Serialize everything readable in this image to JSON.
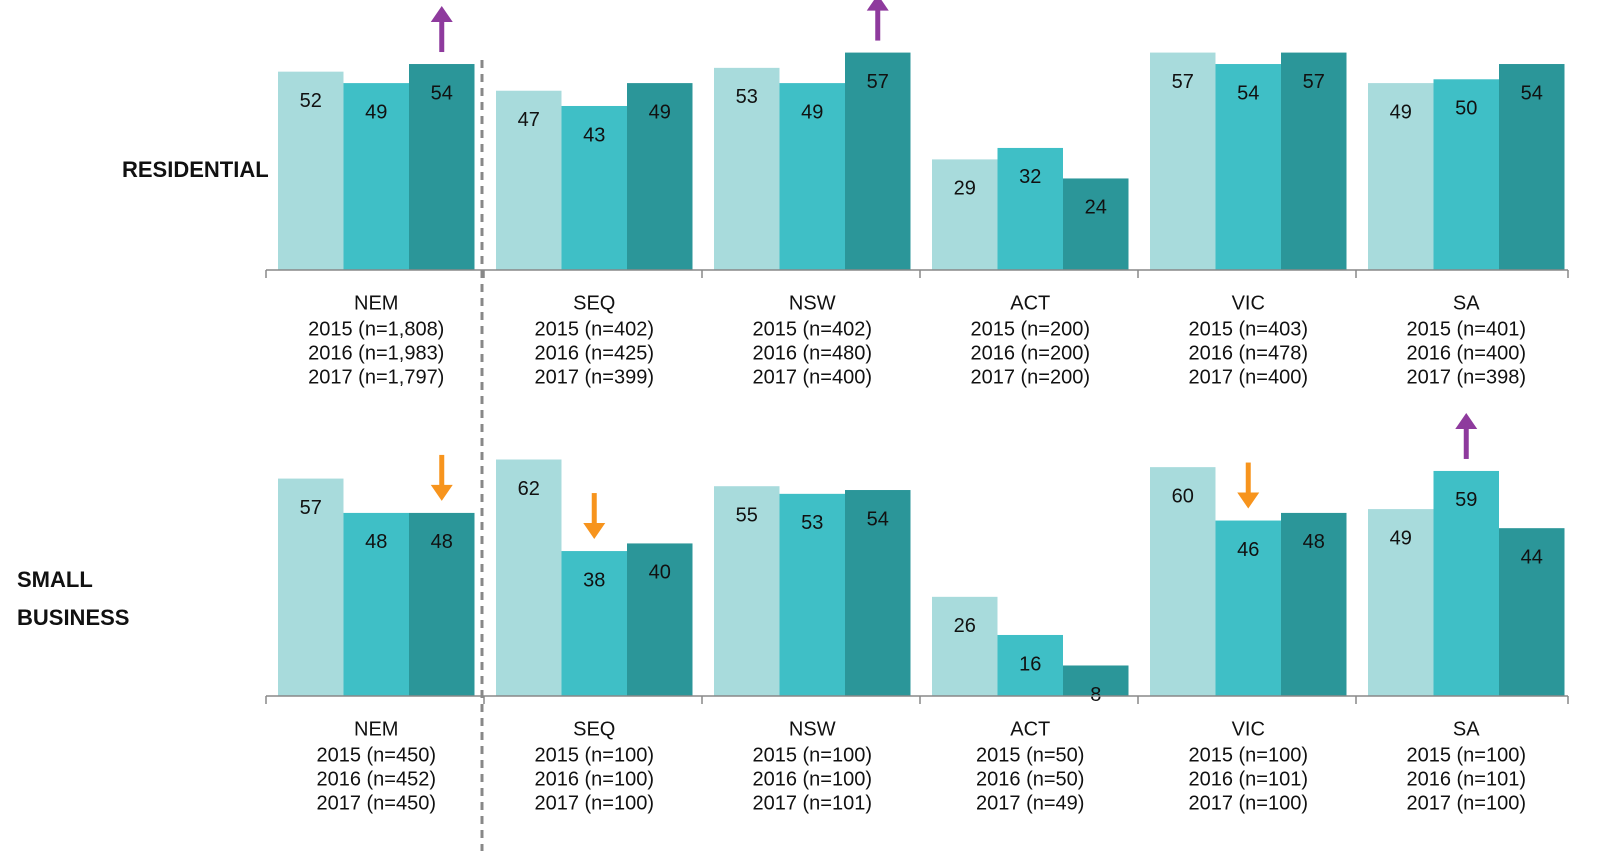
{
  "chart_data": [
    {
      "type": "bar",
      "title": "RESIDENTIAL",
      "categories": [
        "NEM",
        "SEQ",
        "NSW",
        "ACT",
        "VIC",
        "SA"
      ],
      "sample_sizes": [
        [
          "2015 (n=1,808)",
          "2016 (n=1,983)",
          "2017 (n=1,797)"
        ],
        [
          "2015 (n=402)",
          "2016 (n=425)",
          "2017 (n=399)"
        ],
        [
          "2015 (n=402)",
          "2016 (n=480)",
          "2017 (n=400)"
        ],
        [
          "2015 (n=200)",
          "2016 (n=200)",
          "2017 (n=200)"
        ],
        [
          "2015 (n=403)",
          "2016 (n=478)",
          "2017 (n=400)"
        ],
        [
          "2015 (n=401)",
          "2016 (n=400)",
          "2017 (n=398)"
        ]
      ],
      "series": [
        {
          "color": "#a8dbdc",
          "values": [
            52,
            47,
            53,
            29,
            57,
            49
          ]
        },
        {
          "color": "#3fbfc6",
          "values": [
            49,
            43,
            49,
            32,
            54,
            50
          ]
        },
        {
          "color": "#2b9699",
          "values": [
            54,
            49,
            57,
            24,
            57,
            54
          ]
        }
      ],
      "ylim": [
        0,
        70
      ],
      "arrows": [
        {
          "series": 2,
          "category": 0,
          "direction": "up",
          "color": "#8e3a9d"
        },
        {
          "series": 2,
          "category": 2,
          "direction": "up",
          "color": "#8e3a9d"
        }
      ]
    },
    {
      "type": "bar",
      "title": "SMALL BUSINESS",
      "categories": [
        "NEM",
        "SEQ",
        "NSW",
        "ACT",
        "VIC",
        "SA"
      ],
      "sample_sizes": [
        [
          "2015 (n=450)",
          "2016 (n=452)",
          "2017 (n=450)"
        ],
        [
          "2015 (n=100)",
          "2016 (n=100)",
          "2017 (n=100)"
        ],
        [
          "2015 (n=100)",
          "2016 (n=100)",
          "2017 (n=101)"
        ],
        [
          "2015 (n=50)",
          "2016 (n=50)",
          "2017 (n=49)"
        ],
        [
          "2015 (n=100)",
          "2016 (n=101)",
          "2017 (n=100)"
        ],
        [
          "2015 (n=100)",
          "2016 (n=101)",
          "2017 (n=100)"
        ]
      ],
      "series": [
        {
          "color": "#a8dbdc",
          "values": [
            57,
            62,
            55,
            26,
            60,
            49
          ]
        },
        {
          "color": "#3fbfc6",
          "values": [
            48,
            38,
            53,
            16,
            46,
            59
          ]
        },
        {
          "color": "#2b9699",
          "values": [
            48,
            40,
            54,
            8,
            48,
            44
          ]
        }
      ],
      "ylim": [
        0,
        70
      ],
      "arrows": [
        {
          "series": 2,
          "category": 0,
          "direction": "down",
          "color": "#f7941d"
        },
        {
          "series": 1,
          "category": 1,
          "direction": "down",
          "color": "#f7941d"
        },
        {
          "series": 1,
          "category": 4,
          "direction": "down",
          "color": "#f7941d"
        },
        {
          "series": 1,
          "category": 5,
          "direction": "up",
          "color": "#8e3a9d"
        }
      ]
    }
  ]
}
